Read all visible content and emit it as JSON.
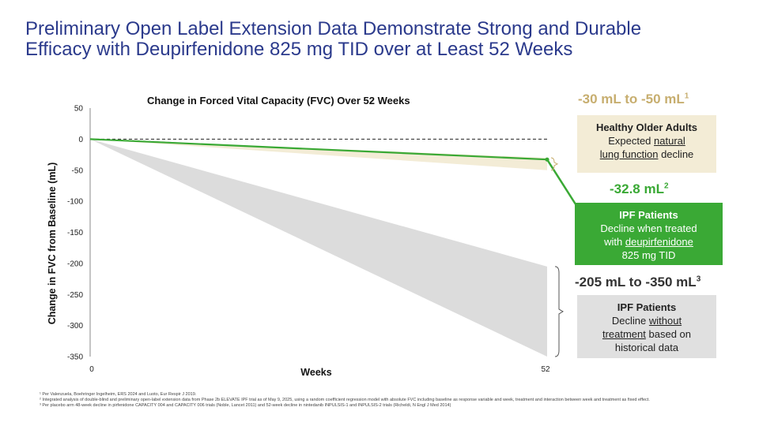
{
  "title": {
    "line1": "Preliminary Open Label Extension Data Demonstrate Strong and Durable",
    "line2": "Efficacy with Deupirfenidone 825 mg TID over at Least 52 Weeks"
  },
  "chart_data": {
    "type": "line",
    "title": "Change in Forced Vital Capacity (FVC) Over 52 Weeks",
    "xlabel": "Weeks",
    "ylabel": "Change in FVC from Baseline (mL)",
    "x_ticks": [
      "0",
      "52"
    ],
    "y_ticks": [
      "50",
      "0",
      "-50",
      "-100",
      "-150",
      "-200",
      "-250",
      "-300",
      "-350"
    ],
    "xlim": [
      0,
      52
    ],
    "ylim": [
      -350,
      50
    ],
    "baseline": 0,
    "series": [
      {
        "key": "deupirfenidone",
        "x": [
          0,
          52
        ],
        "y": [
          0,
          -32.8
        ],
        "color": "#3aa935"
      }
    ],
    "bands": [
      {
        "key": "healthy_older_adults",
        "x": [
          0,
          52
        ],
        "upper": [
          0,
          -30
        ],
        "lower": [
          0,
          -50
        ],
        "color": "#f3ecd6"
      },
      {
        "key": "ipf_untreated",
        "x": [
          0,
          52
        ],
        "upper": [
          0,
          -205
        ],
        "lower": [
          0,
          -350
        ],
        "color": "#dcdcdc"
      }
    ]
  },
  "annotations": {
    "healthy": {
      "range": "-30 mL to -50 mL",
      "ref": "1",
      "heading": "Healthy Older Adults",
      "line1": "Expected",
      "line1_u": "natural",
      "line2_u": "lung function",
      "line2": "decline"
    },
    "ipf_treated": {
      "range": "-32.8 mL",
      "ref": "2",
      "heading": "IPF Patients",
      "line1": "Decline when treated",
      "line2_pre": "with",
      "line2_u": "deupirfenidone",
      "line3": "825 mg TID"
    },
    "ipf_untreated": {
      "range": "-205 mL to -350 mL",
      "ref": "3",
      "heading": "IPF Patients",
      "line1_pre": "Decline",
      "line1_u": "without",
      "line2_u": "treatment",
      "line2": "based on",
      "line3": "historical data"
    }
  },
  "footnotes": [
    "¹ Per Valenzuela, Boehringer Ingelheim, ERS 2024 and Luoto, Eur Respir J 2019.",
    "² Integrated analysis of double-blind and preliminary open-label extension data from Phase 2b ELEVATE IPF trial as of May 9, 2025, using a random coefficient regression model with absolute FVC including baseline as response variable and week, treatment and interaction between week and treatment as fixed effect.",
    "³ Per placebo arm 48-week decline in pirfenidone CAPACITY 004 and CAPACITY 006 trials (Noble, Lancet 2011) and 52-week decline in nintedanib INPULSIS-1 and INPULSIS-2 trials (Richeldi, N Engl J Med 2014)"
  ]
}
